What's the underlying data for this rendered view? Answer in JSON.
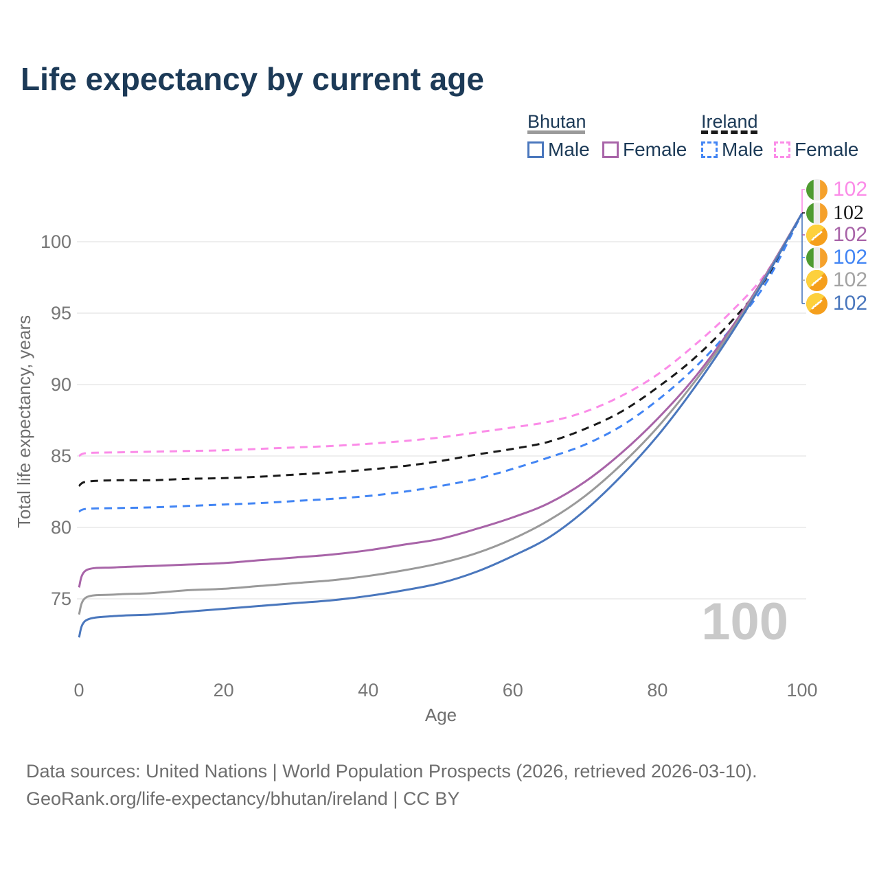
{
  "page": {
    "title": "Life expectancy by current age",
    "watermark_age": "100",
    "footer_line1": "Data sources: United Nations | World Population Prospects (2026, retrieved 2026-03-10).",
    "footer_line2": "GeoRank.org/life-expectancy/bhutan/ireland | CC BY"
  },
  "legend": {
    "groups": [
      {
        "name": "Bhutan",
        "rule_style": "solid",
        "rule_color": "#9a9a9a",
        "items": [
          {
            "label": "Male",
            "color": "#4a77bd",
            "style": "solid"
          },
          {
            "label": "Female",
            "color": "#a864a8",
            "style": "solid"
          }
        ]
      },
      {
        "name": "Ireland",
        "rule_style": "dashed",
        "rule_color": "#1a1a1a",
        "items": [
          {
            "label": "Male",
            "color": "#4285f4",
            "style": "dashed"
          },
          {
            "label": "Female",
            "color": "#fb8ce8",
            "style": "dashed"
          }
        ]
      }
    ]
  },
  "chart_data": {
    "type": "line",
    "title": "Life expectancy by current age",
    "xlabel": "Age",
    "ylabel": "Total life expectancy, years",
    "x_ticks": [
      0,
      20,
      40,
      60,
      80,
      100
    ],
    "y_ticks": [
      75,
      80,
      85,
      90,
      95,
      100
    ],
    "xlim": [
      0,
      100
    ],
    "ylim": [
      72,
      103
    ],
    "grid": "horizontal",
    "legend_position": "top-right",
    "x": [
      0,
      1,
      5,
      10,
      15,
      20,
      25,
      30,
      35,
      40,
      45,
      50,
      55,
      60,
      65,
      70,
      75,
      80,
      85,
      90,
      95,
      100
    ],
    "series": [
      {
        "name": "Ireland Female",
        "country": "Ireland",
        "sex": "Female",
        "color": "#fb8ce8",
        "dash": "dashed",
        "values": [
          85.0,
          85.2,
          85.25,
          85.3,
          85.35,
          85.4,
          85.5,
          85.6,
          85.7,
          85.85,
          86.05,
          86.3,
          86.65,
          87.0,
          87.4,
          88.1,
          89.2,
          90.7,
          92.7,
          95.0,
          97.8,
          102
        ]
      },
      {
        "name": "Ireland Total",
        "country": "Ireland",
        "sex": "Both",
        "color": "#1a1a1a",
        "dash": "dashed",
        "values": [
          82.9,
          83.2,
          83.3,
          83.3,
          83.4,
          83.45,
          83.55,
          83.7,
          83.85,
          84.05,
          84.3,
          84.65,
          85.1,
          85.5,
          86.0,
          86.9,
          88.1,
          89.8,
          91.8,
          94.3,
          97.4,
          102
        ]
      },
      {
        "name": "Ireland Male",
        "country": "Ireland",
        "sex": "Male",
        "color": "#4285f4",
        "dash": "dashed",
        "values": [
          81.1,
          81.3,
          81.35,
          81.4,
          81.5,
          81.6,
          81.7,
          81.85,
          82.0,
          82.2,
          82.5,
          82.9,
          83.4,
          84.1,
          84.9,
          85.8,
          87.1,
          88.9,
          91.1,
          93.8,
          97.1,
          102
        ]
      },
      {
        "name": "Bhutan Female",
        "country": "Bhutan",
        "sex": "Female",
        "color": "#a864a8",
        "dash": "solid",
        "values": [
          75.8,
          77.0,
          77.2,
          77.3,
          77.4,
          77.5,
          77.7,
          77.9,
          78.1,
          78.4,
          78.8,
          79.2,
          79.9,
          80.7,
          81.7,
          83.2,
          85.2,
          87.6,
          90.4,
          93.8,
          97.7,
          102
        ]
      },
      {
        "name": "Bhutan Total",
        "country": "Bhutan",
        "sex": "Both",
        "color": "#9a9a9a",
        "dash": "solid",
        "values": [
          73.9,
          75.1,
          75.3,
          75.4,
          75.6,
          75.7,
          75.9,
          76.1,
          76.3,
          76.6,
          77.0,
          77.5,
          78.2,
          79.2,
          80.5,
          82.2,
          84.4,
          87.0,
          90.1,
          93.6,
          97.6,
          102
        ]
      },
      {
        "name": "Bhutan Male",
        "country": "Bhutan",
        "sex": "Male",
        "color": "#4a77bd",
        "dash": "solid",
        "values": [
          72.3,
          73.5,
          73.8,
          73.9,
          74.1,
          74.3,
          74.5,
          74.7,
          74.9,
          75.2,
          75.6,
          76.1,
          76.9,
          78.0,
          79.3,
          81.2,
          83.6,
          86.4,
          89.7,
          93.4,
          97.5,
          102
        ]
      }
    ],
    "end_labels": [
      {
        "value": "102",
        "flag": "ireland",
        "color": "#fb8ce8",
        "serif": false,
        "series": "Ireland Female"
      },
      {
        "value": "102",
        "flag": "ireland",
        "color": "#1a1a1a",
        "serif": true,
        "series": "Ireland Total"
      },
      {
        "value": "102",
        "flag": "bhutan",
        "color": "#a864a8",
        "serif": false,
        "series": "Bhutan Female"
      },
      {
        "value": "102",
        "flag": "ireland",
        "color": "#4285f4",
        "serif": false,
        "series": "Ireland Male"
      },
      {
        "value": "102",
        "flag": "bhutan",
        "color": "#a3a3a3",
        "serif": false,
        "series": "Bhutan Total"
      },
      {
        "value": "102",
        "flag": "bhutan",
        "color": "#4a77bd",
        "serif": false,
        "series": "Bhutan Male"
      }
    ]
  }
}
